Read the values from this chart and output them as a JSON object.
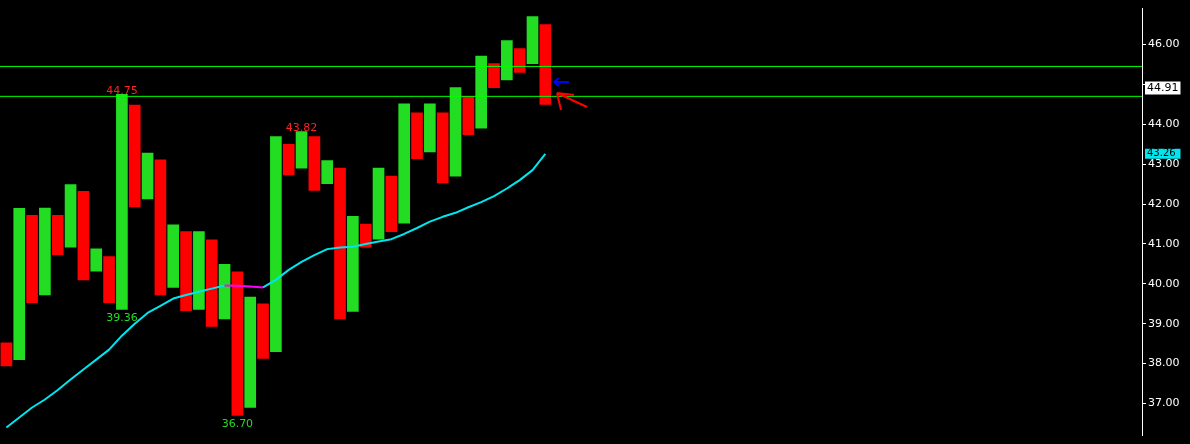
{
  "chart_data": {
    "type": "bar",
    "categories": [
      null,
      null,
      null,
      null,
      null,
      null,
      null,
      null,
      null,
      null,
      null,
      null,
      null,
      null,
      null,
      null,
      null,
      null,
      null,
      null,
      null,
      null,
      null,
      null,
      null,
      null,
      null,
      null,
      null,
      null,
      null,
      null,
      null,
      null,
      null,
      null,
      null,
      null,
      null,
      null,
      null,
      null,
      null,
      null,
      null,
      null,
      null,
      null,
      null,
      null,
      null,
      null,
      null,
      null,
      null,
      null,
      null,
      null,
      null,
      null,
      null,
      null,
      null,
      null,
      null,
      null,
      null,
      null,
      null,
      null,
      null,
      null,
      null,
      null,
      null,
      null,
      null,
      null,
      null,
      null,
      null,
      null,
      null,
      null,
      null,
      null,
      null,
      null,
      null
    ],
    "ylim": [
      36.2,
      46.9
    ],
    "yticks": [
      {
        "value": 37,
        "label": "37.00"
      },
      {
        "value": 38,
        "label": "38.00"
      },
      {
        "value": 39,
        "label": "39.00"
      },
      {
        "value": 40,
        "label": "40.00"
      },
      {
        "value": 41,
        "label": "41.00"
      },
      {
        "value": 42,
        "label": "42.00"
      },
      {
        "value": 43,
        "label": "43.00"
      },
      {
        "value": 44,
        "label": "44.00"
      },
      {
        "value": 45,
        "label": null
      },
      {
        "value": 46,
        "label": "46.00"
      }
    ],
    "tick_labels": "y",
    "series": [
      {
        "values": [
          0.58,
          3.79,
          2.19,
          2.18,
          0.99,
          1.57,
          2.22,
          0.56,
          1.15,
          5.39,
          2.55,
          1.15,
          3.39,
          1.57,
          1.98,
          1.95,
          2.17,
          1.37,
          3.6,
          2.77,
          1.37,
          5.39,
          0.77,
          0.92,
          1.35,
          0.58,
          3.78,
          2.38,
          0.58,
          1.78,
          1.39,
          2.99,
          1.15,
          1.2,
          1.76,
          2.22,
          0.96,
          1.81,
          0.6,
          0.99,
          0.6,
          1.18,
          2.0,
          null,
          null,
          null,
          null,
          null,
          null,
          null,
          null,
          null,
          null,
          null,
          null,
          null,
          null,
          null,
          null,
          null,
          null,
          null,
          null,
          null,
          null,
          null,
          null,
          null,
          null,
          null,
          null,
          null,
          null,
          null,
          null,
          null,
          null,
          null,
          null,
          null,
          null,
          null,
          null,
          null,
          null,
          null,
          null,
          null,
          null
        ],
        "base": [
          37.94,
          38.1,
          39.53,
          39.72,
          40.73,
          40.92,
          40.1,
          40.32,
          39.53,
          39.36,
          41.93,
          42.13,
          39.72,
          39.91,
          39.33,
          39.36,
          38.93,
          39.12,
          36.7,
          36.9,
          38.13,
          38.3,
          42.73,
          42.9,
          42.34,
          42.51,
          39.12,
          39.31,
          40.92,
          41.12,
          41.31,
          41.52,
          43.14,
          43.31,
          42.53,
          42.7,
          43.74,
          43.9,
          44.92,
          45.11,
          45.3,
          45.52,
          44.5,
          null,
          null,
          null,
          null,
          null,
          null,
          null,
          null,
          null,
          null,
          null,
          null,
          null,
          null,
          null,
          null,
          null,
          null,
          null,
          null,
          null,
          null,
          null,
          null,
          null,
          null,
          null,
          null,
          null,
          null,
          null,
          null,
          null,
          null,
          null,
          null,
          null,
          null,
          null,
          null,
          null,
          null,
          null,
          null,
          null,
          null
        ],
        "colors": [
          "#ff0000",
          "#22dd22",
          "#ff0000",
          "#22dd22",
          "#ff0000",
          "#22dd22",
          "#ff0000",
          "#22dd22",
          "#ff0000",
          "#22dd22",
          "#ff0000",
          "#22dd22",
          "#ff0000",
          "#22dd22",
          "#ff0000",
          "#22dd22",
          "#ff0000",
          "#22dd22",
          "#ff0000",
          "#22dd22",
          "#ff0000",
          "#22dd22",
          "#ff0000",
          "#22dd22",
          "#ff0000",
          "#22dd22",
          "#ff0000",
          "#22dd22",
          "#ff0000",
          "#22dd22",
          "#ff0000",
          "#22dd22",
          "#ff0000",
          "#22dd22",
          "#ff0000",
          "#22dd22",
          "#ff0000",
          "#22dd22",
          "#ff0000",
          "#22dd22",
          "#ff0000",
          "#22dd22",
          "#ff0000",
          null,
          null,
          null,
          null,
          null,
          null,
          null,
          null,
          null,
          null,
          null,
          null,
          null,
          null,
          null,
          null,
          null,
          null,
          null,
          null,
          null,
          null,
          null,
          null,
          null,
          null,
          null,
          null,
          null,
          null,
          null,
          null,
          null,
          null,
          null,
          null,
          null,
          null,
          null,
          null,
          null,
          null,
          null,
          null,
          null,
          null
        ]
      },
      {
        "type": "line",
        "color": "#00e5ee",
        "values": [
          36.4,
          36.65,
          36.9,
          37.1,
          37.34,
          37.6,
          37.85,
          38.1,
          38.35,
          38.7,
          39.0,
          39.27,
          39.45,
          39.63,
          39.72,
          39.8,
          39.88,
          39.96,
          null,
          null,
          39.91,
          40.1,
          40.35,
          40.55,
          40.72,
          40.87,
          40.91,
          40.93,
          41.0,
          41.06,
          41.12,
          41.25,
          41.4,
          41.56,
          41.68,
          41.78,
          41.92,
          42.05,
          42.2,
          42.39,
          42.6,
          42.85,
          43.26,
          null,
          null,
          null,
          null,
          null,
          null,
          null,
          null,
          null,
          null,
          null,
          null,
          null,
          null,
          null,
          null,
          null,
          null,
          null,
          null,
          null,
          null,
          null,
          null,
          null,
          null,
          null,
          null,
          null,
          null,
          null,
          null,
          null,
          null,
          null,
          null,
          null,
          null,
          null,
          null,
          null,
          null,
          null,
          null,
          null,
          null
        ]
      },
      {
        "type": "line",
        "color": "#ff00ff",
        "values": [
          null,
          null,
          null,
          null,
          null,
          null,
          null,
          null,
          null,
          null,
          null,
          null,
          null,
          null,
          null,
          null,
          null,
          39.96,
          39.95,
          39.93,
          39.91,
          null,
          null,
          null,
          null,
          null,
          null,
          null,
          null,
          null,
          null,
          null,
          null,
          null,
          null,
          null,
          null,
          null,
          null,
          null,
          null,
          null,
          null,
          null,
          null,
          null,
          null,
          null,
          null,
          null,
          null,
          null,
          null,
          null,
          null,
          null,
          null,
          null,
          null,
          null,
          null,
          null,
          null,
          null,
          null,
          null,
          null,
          null,
          null,
          null,
          null,
          null,
          null,
          null,
          null,
          null,
          null,
          null,
          null,
          null,
          null,
          null,
          null,
          null,
          null,
          null,
          null,
          null,
          null
        ]
      }
    ],
    "ref_lines": [
      {
        "axis": "y",
        "value": 45.45,
        "color": "#00ff00"
      },
      {
        "axis": "y",
        "value": 44.7,
        "color": "#00ff00"
      }
    ],
    "annotations": [
      {
        "text": "44.75",
        "y": 44.75
      },
      {
        "text": "43.82",
        "y": 43.82
      },
      {
        "text": "39.36",
        "y": 39.36
      },
      {
        "text": "36.70",
        "y": 36.7
      },
      {
        "text": "44.91",
        "y": 44.91
      },
      "43.26"
    ]
  }
}
